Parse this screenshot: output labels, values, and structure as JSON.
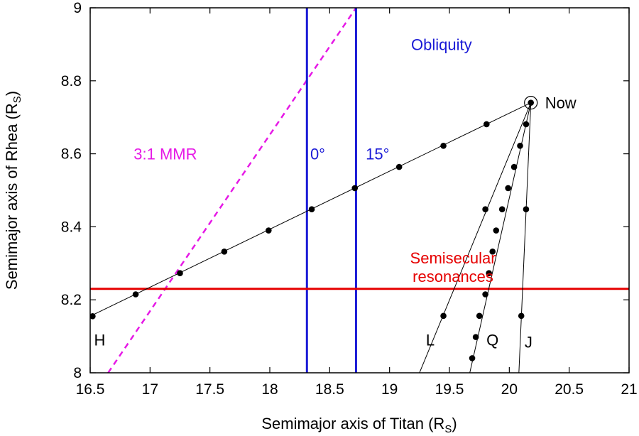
{
  "chart_data": {
    "type": "line",
    "xlabel": "Semimajor axis of Titan (R",
    "xlabel_sub": "S",
    "xlabel_close": ")",
    "ylabel": "Semimajor axis of Rhea (R",
    "ylabel_sub": "S",
    "ylabel_close": ")",
    "xlim": [
      16.5,
      21
    ],
    "ylim": [
      8,
      9
    ],
    "xticks": [
      16.5,
      17,
      17.5,
      18,
      18.5,
      19,
      19.5,
      20,
      20.5,
      21
    ],
    "xtick_labels": [
      "16.5",
      "17",
      "17.5",
      "18",
      "18.5",
      "19",
      "19.5",
      "20",
      "20.5",
      "21"
    ],
    "yticks": [
      8,
      8.2,
      8.4,
      8.6,
      8.8,
      9
    ],
    "ytick_labels": [
      "8",
      "8.2",
      "8.4",
      "8.6",
      "8.8",
      "9"
    ],
    "grid": false,
    "now_point": {
      "x": 20.18,
      "y": 8.74,
      "label": "Now"
    },
    "tracks": [
      {
        "label": "H",
        "label_at": [
          16.58,
          8.09
        ],
        "line": [
          [
            16.5,
            8.155
          ],
          [
            20.18,
            8.74
          ]
        ],
        "points": [
          [
            16.52,
            8.155
          ],
          [
            16.88,
            8.215
          ],
          [
            17.25,
            8.273
          ],
          [
            17.62,
            8.332
          ],
          [
            17.99,
            8.39
          ],
          [
            18.35,
            8.448
          ],
          [
            18.71,
            8.506
          ],
          [
            19.08,
            8.564
          ],
          [
            19.45,
            8.622
          ],
          [
            19.81,
            8.681
          ],
          [
            20.18,
            8.74
          ]
        ]
      },
      {
        "label": "L",
        "label_at": [
          19.34,
          8.09
        ],
        "line": [
          [
            19.25,
            8.0
          ],
          [
            20.18,
            8.74
          ]
        ],
        "points": [
          [
            19.45,
            8.156
          ],
          [
            19.8,
            8.448
          ]
        ]
      },
      {
        "label": "Q",
        "label_at": [
          19.86,
          8.09
        ],
        "line": [
          [
            19.67,
            8.0
          ],
          [
            20.18,
            8.74
          ]
        ],
        "points": [
          [
            19.69,
            8.04
          ],
          [
            19.72,
            8.098
          ],
          [
            19.75,
            8.156
          ],
          [
            19.8,
            8.215
          ],
          [
            19.83,
            8.273
          ],
          [
            19.86,
            8.332
          ],
          [
            19.89,
            8.39
          ],
          [
            19.94,
            8.448
          ],
          [
            19.99,
            8.506
          ],
          [
            20.04,
            8.564
          ],
          [
            20.09,
            8.622
          ],
          [
            20.14,
            8.681
          ]
        ]
      },
      {
        "label": "J",
        "label_at": [
          20.16,
          8.085
        ],
        "line": [
          [
            20.08,
            8.0
          ],
          [
            20.18,
            8.74
          ]
        ],
        "points": [
          [
            20.1,
            8.156
          ],
          [
            20.14,
            8.448
          ]
        ]
      }
    ],
    "vertical_lines": [
      {
        "x": 18.31,
        "label": "0°",
        "label_at": [
          18.4,
          8.6
        ]
      },
      {
        "x": 18.72,
        "label": "15°",
        "label_at": [
          18.9,
          8.6
        ]
      }
    ],
    "obliquity_label": "Obliquity",
    "obliquity_label_at": [
      19.18,
      8.9
    ],
    "horizontal_line": {
      "y": 8.23,
      "label_line1": "Semisecular",
      "label_line2": "resonances",
      "label_at": [
        19.53,
        8.315
      ],
      "label2_at": [
        19.53,
        8.265
      ]
    },
    "mmr_line": {
      "label": "3:1 MMR",
      "label_at": [
        16.95,
        8.6
      ],
      "line": [
        [
          16.65,
          8.0
        ],
        [
          18.72,
          9.0
        ]
      ]
    },
    "colors": {
      "obliquity": "#1a1ad6",
      "semisecular": "#e60000",
      "mmr": "#e619e6",
      "tracks": "#000000"
    }
  }
}
